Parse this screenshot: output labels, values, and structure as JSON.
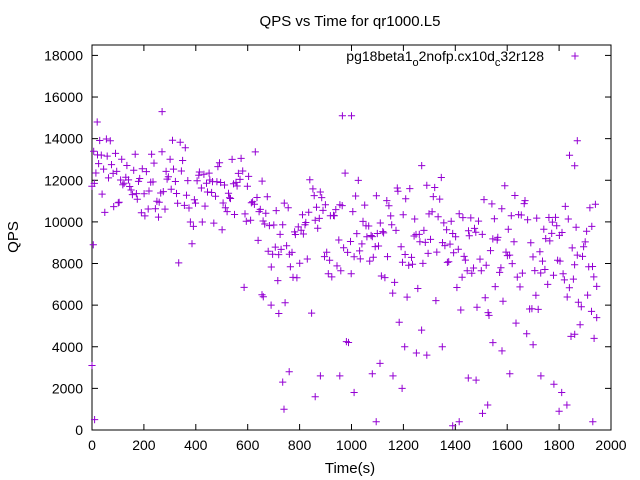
{
  "chart_data": {
    "type": "scatter",
    "title": "QPS vs Time for qr1000.L5",
    "xlabel": "Time(s)",
    "ylabel": "QPS",
    "xlim": [
      0,
      2000
    ],
    "ylim": [
      0,
      18500
    ],
    "xticks": [
      0,
      200,
      400,
      600,
      800,
      1000,
      1200,
      1400,
      1600,
      1800,
      2000
    ],
    "yticks": [
      0,
      2000,
      4000,
      6000,
      8000,
      10000,
      12000,
      14000,
      16000,
      18000
    ],
    "grid": false,
    "legend": "top-right",
    "marker": "+",
    "colors": {
      "series": "#9400d3",
      "axis": "#000000"
    },
    "series": [
      {
        "name_parts": {
          "base": "pg18beta1",
          "sub1": "o",
          "mid": "2nofp.cx10d",
          "sub2": "c",
          "tail": "32r128"
        },
        "x_step": 5,
        "x_start": 0,
        "x_end": 1945,
        "trend": [
          [
            0,
            12600
          ],
          [
            20,
            12800
          ],
          [
            50,
            12200
          ],
          [
            100,
            11900
          ],
          [
            150,
            11800
          ],
          [
            200,
            11800
          ],
          [
            250,
            11900
          ],
          [
            300,
            11800
          ],
          [
            350,
            11600
          ],
          [
            400,
            12000
          ],
          [
            450,
            11600
          ],
          [
            500,
            11400
          ],
          [
            550,
            11200
          ],
          [
            600,
            11300
          ],
          [
            650,
            11000
          ],
          [
            680,
            9500
          ],
          [
            700,
            9000
          ],
          [
            750,
            9200
          ],
          [
            800,
            9800
          ],
          [
            850,
            10200
          ],
          [
            900,
            9800
          ],
          [
            950,
            9200
          ],
          [
            1000,
            9100
          ],
          [
            1050,
            9000
          ],
          [
            1100,
            9300
          ],
          [
            1150,
            9100
          ],
          [
            1200,
            8900
          ],
          [
            1250,
            9000
          ],
          [
            1300,
            9600
          ],
          [
            1350,
            9400
          ],
          [
            1400,
            8800
          ],
          [
            1450,
            9200
          ],
          [
            1500,
            8600
          ],
          [
            1550,
            9000
          ],
          [
            1600,
            8700
          ],
          [
            1650,
            9100
          ],
          [
            1700,
            8600
          ],
          [
            1750,
            8900
          ],
          [
            1800,
            8600
          ],
          [
            1850,
            8800
          ],
          [
            1900,
            8800
          ],
          [
            1945,
            8500
          ]
        ],
        "spread": 1400,
        "outliers": [
          [
            0,
            3100
          ],
          [
            5,
            8900
          ],
          [
            10,
            500
          ],
          [
            20,
            14800
          ],
          [
            270,
            15300
          ],
          [
            655,
            6500
          ],
          [
            660,
            6400
          ],
          [
            690,
            6000
          ],
          [
            720,
            5600
          ],
          [
            735,
            2300
          ],
          [
            740,
            1000
          ],
          [
            760,
            2800
          ],
          [
            860,
            1600
          ],
          [
            880,
            2600
          ],
          [
            955,
            2600
          ],
          [
            965,
            15100
          ],
          [
            1000,
            15100
          ],
          [
            1010,
            1800
          ],
          [
            1080,
            2700
          ],
          [
            1095,
            400
          ],
          [
            1110,
            3200
          ],
          [
            1160,
            2600
          ],
          [
            1195,
            2000
          ],
          [
            1205,
            4000
          ],
          [
            1290,
            3600
          ],
          [
            1390,
            200
          ],
          [
            1415,
            400
          ],
          [
            1480,
            2400
          ],
          [
            1505,
            800
          ],
          [
            1525,
            1200
          ],
          [
            1580,
            3800
          ],
          [
            1610,
            2700
          ],
          [
            1730,
            2600
          ],
          [
            1780,
            2200
          ],
          [
            1800,
            900
          ],
          [
            1810,
            1800
          ],
          [
            1830,
            1200
          ],
          [
            1840,
            13200
          ],
          [
            1860,
            12700
          ],
          [
            1870,
            13900
          ],
          [
            1925,
            5700
          ],
          [
            1930,
            400
          ],
          [
            1935,
            4400
          ],
          [
            1945,
            5400
          ],
          [
            1350,
            4000
          ],
          [
            1450,
            2500
          ],
          [
            1545,
            4200
          ],
          [
            1250,
            3700
          ],
          [
            1700,
            4100
          ],
          [
            1860,
            4600
          ],
          [
            1270,
            4800
          ]
        ],
        "seed": 17
      }
    ]
  }
}
